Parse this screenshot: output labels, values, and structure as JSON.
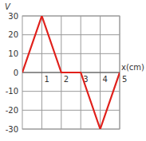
{
  "chart_data": {
    "type": "line",
    "y_label": "V",
    "x_label": "x(cm)",
    "x": [
      0,
      1,
      2,
      3,
      4,
      5
    ],
    "values": [
      0,
      30,
      0,
      0,
      -30,
      0
    ],
    "color": "#e0201b",
    "xlim": [
      0,
      5
    ],
    "xticks": [
      1,
      2,
      3,
      4,
      5
    ],
    "ylim": [
      -30,
      30
    ],
    "yticks": [
      -30,
      -20,
      -10,
      0,
      10,
      20,
      30
    ],
    "grid": true
  }
}
